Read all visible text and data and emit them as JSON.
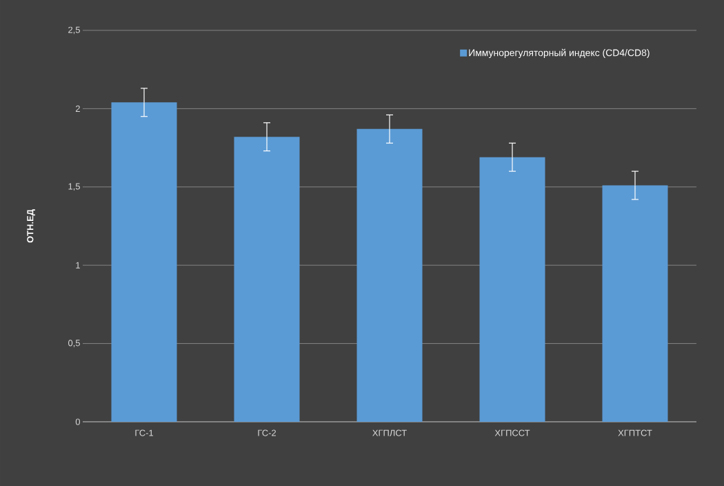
{
  "chart_data": {
    "type": "bar",
    "ylabel": "ОТН.ЕД",
    "categories": [
      "ГС-1",
      "ГС-2",
      "ХГПЛСТ",
      "ХГПССТ",
      "ХГПТСТ"
    ],
    "series": [
      {
        "name": "Иммунорегуляторный индекс (CD4/CD8)",
        "color": "#5b9bd5",
        "values": [
          2.04,
          1.82,
          1.87,
          1.69,
          1.51
        ],
        "errors": [
          0.09,
          0.09,
          0.09,
          0.09,
          0.09
        ]
      }
    ],
    "ylim": [
      0,
      2.5
    ],
    "yticks": [
      0,
      {
        "value": 0.5,
        "label": "0,5"
      },
      1,
      {
        "value": 1.5,
        "label": "1,5"
      },
      2,
      {
        "value": 2.5,
        "label": "2,5"
      }
    ],
    "grid": "y",
    "legend": "top right"
  }
}
